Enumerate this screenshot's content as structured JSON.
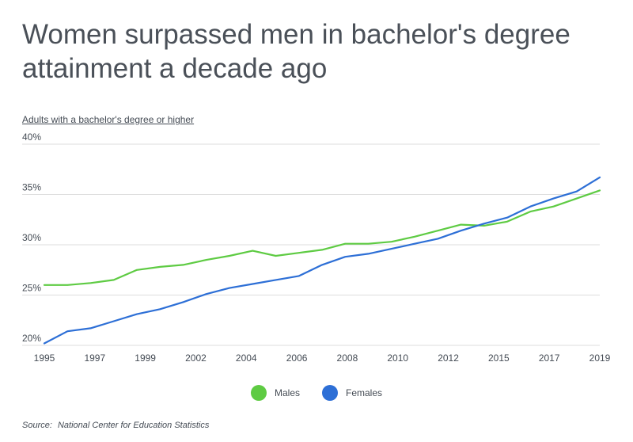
{
  "title": "Women surpassed men in bachelor's degree attainment a decade ago",
  "source": {
    "label": "Source:",
    "text": "National Center for Education Statistics"
  },
  "colors": {
    "males": "#5ecb43",
    "females": "#2d6fd6",
    "grid": "#dedede"
  },
  "chart_data": {
    "type": "line",
    "ylabel": "Adults with a bachelor's degree or higher",
    "ylim": [
      20,
      40
    ],
    "yticks": [
      "20%",
      "25%",
      "30%",
      "35%",
      "40%"
    ],
    "ytick_values": [
      20,
      25,
      30,
      35,
      40
    ],
    "xlim": [
      1995,
      2019
    ],
    "xticks": [
      "1995",
      "1997",
      "1999",
      "2002",
      "2004",
      "2006",
      "2008",
      "2010",
      "2012",
      "2015",
      "2017",
      "2019"
    ],
    "grid": true,
    "legend_position": "bottom",
    "x": [
      1995,
      1996,
      1997,
      1998,
      1999,
      2000,
      2001,
      2002,
      2003,
      2004,
      2005,
      2006,
      2007,
      2008,
      2009,
      2010,
      2011,
      2012,
      2013,
      2014,
      2015,
      2016,
      2017,
      2018,
      2019
    ],
    "series": [
      {
        "name": "Males",
        "values": [
          26.0,
          26.0,
          26.2,
          26.5,
          27.5,
          27.8,
          28.0,
          28.5,
          28.9,
          29.4,
          28.9,
          29.2,
          29.5,
          30.1,
          30.1,
          30.3,
          30.8,
          31.4,
          32.0,
          31.9,
          32.3,
          33.3,
          33.8,
          34.6,
          35.4
        ]
      },
      {
        "name": "Females",
        "values": [
          20.2,
          21.4,
          21.7,
          22.4,
          23.1,
          23.6,
          24.3,
          25.1,
          25.7,
          26.1,
          26.5,
          26.9,
          28.0,
          28.8,
          29.1,
          29.6,
          30.1,
          30.6,
          31.4,
          32.1,
          32.7,
          33.8,
          34.6,
          35.3,
          36.7
        ]
      }
    ]
  }
}
